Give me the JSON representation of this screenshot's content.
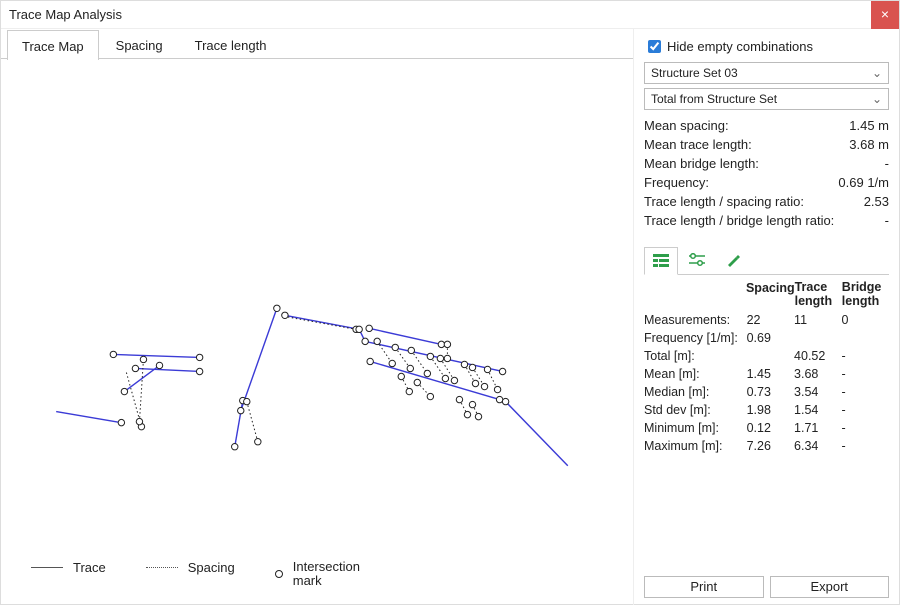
{
  "window": {
    "title": "Trace Map Analysis"
  },
  "tabs": {
    "trace_map": "Trace Map",
    "spacing": "Spacing",
    "trace_length": "Trace length",
    "active": 0
  },
  "legend": {
    "trace": "Trace",
    "spacing": "Spacing",
    "intersection_l1": "Intersection",
    "intersection_l2": "mark"
  },
  "hide_empty": {
    "label": "Hide empty combinations",
    "checked": true
  },
  "dropdowns": {
    "primary": "Structure Set 03",
    "secondary": "Total from Structure Set"
  },
  "summary": {
    "mean_spacing": {
      "label": "Mean spacing:",
      "value": "1.45 m"
    },
    "mean_trace_length": {
      "label": "Mean trace length:",
      "value": "3.68 m"
    },
    "mean_bridge_length": {
      "label": "Mean bridge length:",
      "value": "-"
    },
    "frequency": {
      "label": "Frequency:",
      "value": "0.69 1/m"
    },
    "ratio_spacing": {
      "label": "Trace length / spacing ratio:",
      "value": "2.53"
    },
    "ratio_bridge": {
      "label": "Trace length / bridge length ratio:",
      "value": "-"
    }
  },
  "tool_tabs": {
    "t0": "table-icon",
    "t1": "sliders-icon",
    "t2": "pencil-icon",
    "active": 0
  },
  "table": {
    "headers": {
      "c1": "Spacing",
      "c2a": "Trace",
      "c2b": "length",
      "c3a": "Bridge",
      "c3b": "length"
    },
    "rows": {
      "measurements": {
        "label": "Measurements:",
        "c1": "22",
        "c2": "11",
        "c3": "0"
      },
      "frequency": {
        "label": "Frequency [1/m]:",
        "c1": "0.69",
        "c2": "",
        "c3": ""
      },
      "total": {
        "label": "Total [m]:",
        "c1": "",
        "c2": "40.52",
        "c3": "-"
      },
      "mean": {
        "label": "Mean [m]:",
        "c1": "1.45",
        "c2": "3.68",
        "c3": "-"
      },
      "median": {
        "label": "Median [m]:",
        "c1": "0.73",
        "c2": "3.54",
        "c3": "-"
      },
      "stddev": {
        "label": "Std dev [m]:",
        "c1": "1.98",
        "c2": "1.54",
        "c3": "-"
      },
      "min": {
        "label": "Minimum [m]:",
        "c1": "0.12",
        "c2": "1.71",
        "c3": "-"
      },
      "max": {
        "label": "Maximum [m]:",
        "c1": "7.26",
        "c2": "6.34",
        "c3": "-"
      }
    }
  },
  "buttons": {
    "print": "Print",
    "export": "Export"
  },
  "chart": {
    "type": "trace-map",
    "trace_color": "#3b3bd6",
    "marker_stroke": "#222222",
    "spacing_color": "#222222",
    "marker_radius": 3.2,
    "trace_width": 1.4,
    "traces": [
      [
        [
          55,
          350
        ],
        [
          120,
          361
        ]
      ],
      [
        [
          123,
          330
        ],
        [
          158,
          304
        ]
      ],
      [
        [
          112,
          293
        ],
        [
          198,
          296
        ]
      ],
      [
        [
          134,
          307
        ],
        [
          198,
          310
        ]
      ],
      [
        [
          233,
          385
        ],
        [
          241,
          339
        ]
      ],
      [
        [
          239,
          349
        ],
        [
          275,
          247
        ]
      ],
      [
        [
          283,
          254
        ],
        [
          357,
          268
        ]
      ],
      [
        [
          357,
          268
        ],
        [
          363,
          280
        ]
      ],
      [
        [
          363,
          280
        ],
        [
          500,
          310
        ]
      ],
      [
        [
          368,
          300
        ],
        [
          497,
          338
        ]
      ],
      [
        [
          503,
          340
        ],
        [
          565,
          404
        ]
      ],
      [
        [
          367,
          267
        ],
        [
          439,
          283
        ]
      ]
    ],
    "spacings": [
      [
        [
          125,
          311
        ],
        [
          140,
          365
        ]
      ],
      [
        [
          138,
          360
        ],
        [
          142,
          298
        ]
      ],
      [
        [
          245,
          340
        ],
        [
          256,
          380
        ]
      ],
      [
        [
          282,
          255
        ],
        [
          354,
          268
        ]
      ],
      [
        [
          375,
          280
        ],
        [
          390,
          302
        ]
      ],
      [
        [
          393,
          286
        ],
        [
          408,
          307
        ]
      ],
      [
        [
          409,
          289
        ],
        [
          425,
          312
        ]
      ],
      [
        [
          428,
          295
        ],
        [
          443,
          317
        ]
      ],
      [
        [
          438,
          297
        ],
        [
          452,
          319
        ]
      ],
      [
        [
          445,
          283
        ],
        [
          445,
          297
        ]
      ],
      [
        [
          462,
          303
        ],
        [
          473,
          322
        ]
      ],
      [
        [
          470,
          306
        ],
        [
          482,
          325
        ]
      ],
      [
        [
          485,
          308
        ],
        [
          495,
          328
        ]
      ],
      [
        [
          470,
          343
        ],
        [
          476,
          355
        ]
      ],
      [
        [
          457,
          338
        ],
        [
          465,
          353
        ]
      ],
      [
        [
          399,
          315
        ],
        [
          407,
          330
        ]
      ],
      [
        [
          415,
          321
        ],
        [
          428,
          335
        ]
      ]
    ],
    "markers": [
      [
        120,
        361
      ],
      [
        123,
        330
      ],
      [
        158,
        304
      ],
      [
        140,
        365
      ],
      [
        138,
        360
      ],
      [
        142,
        298
      ],
      [
        112,
        293
      ],
      [
        198,
        296
      ],
      [
        134,
        307
      ],
      [
        198,
        310
      ],
      [
        233,
        385
      ],
      [
        241,
        339
      ],
      [
        245,
        340
      ],
      [
        256,
        380
      ],
      [
        239,
        349
      ],
      [
        275,
        247
      ],
      [
        283,
        254
      ],
      [
        354,
        268
      ],
      [
        357,
        268
      ],
      [
        363,
        280
      ],
      [
        367,
        267
      ],
      [
        439,
        283
      ],
      [
        445,
        283
      ],
      [
        445,
        297
      ],
      [
        375,
        280
      ],
      [
        390,
        302
      ],
      [
        393,
        286
      ],
      [
        408,
        307
      ],
      [
        409,
        289
      ],
      [
        425,
        312
      ],
      [
        428,
        295
      ],
      [
        443,
        317
      ],
      [
        438,
        297
      ],
      [
        452,
        319
      ],
      [
        462,
        303
      ],
      [
        473,
        322
      ],
      [
        470,
        306
      ],
      [
        482,
        325
      ],
      [
        485,
        308
      ],
      [
        495,
        328
      ],
      [
        500,
        310
      ],
      [
        368,
        300
      ],
      [
        497,
        338
      ],
      [
        503,
        340
      ],
      [
        470,
        343
      ],
      [
        476,
        355
      ],
      [
        457,
        338
      ],
      [
        465,
        353
      ],
      [
        399,
        315
      ],
      [
        407,
        330
      ],
      [
        415,
        321
      ],
      [
        428,
        335
      ]
    ]
  }
}
